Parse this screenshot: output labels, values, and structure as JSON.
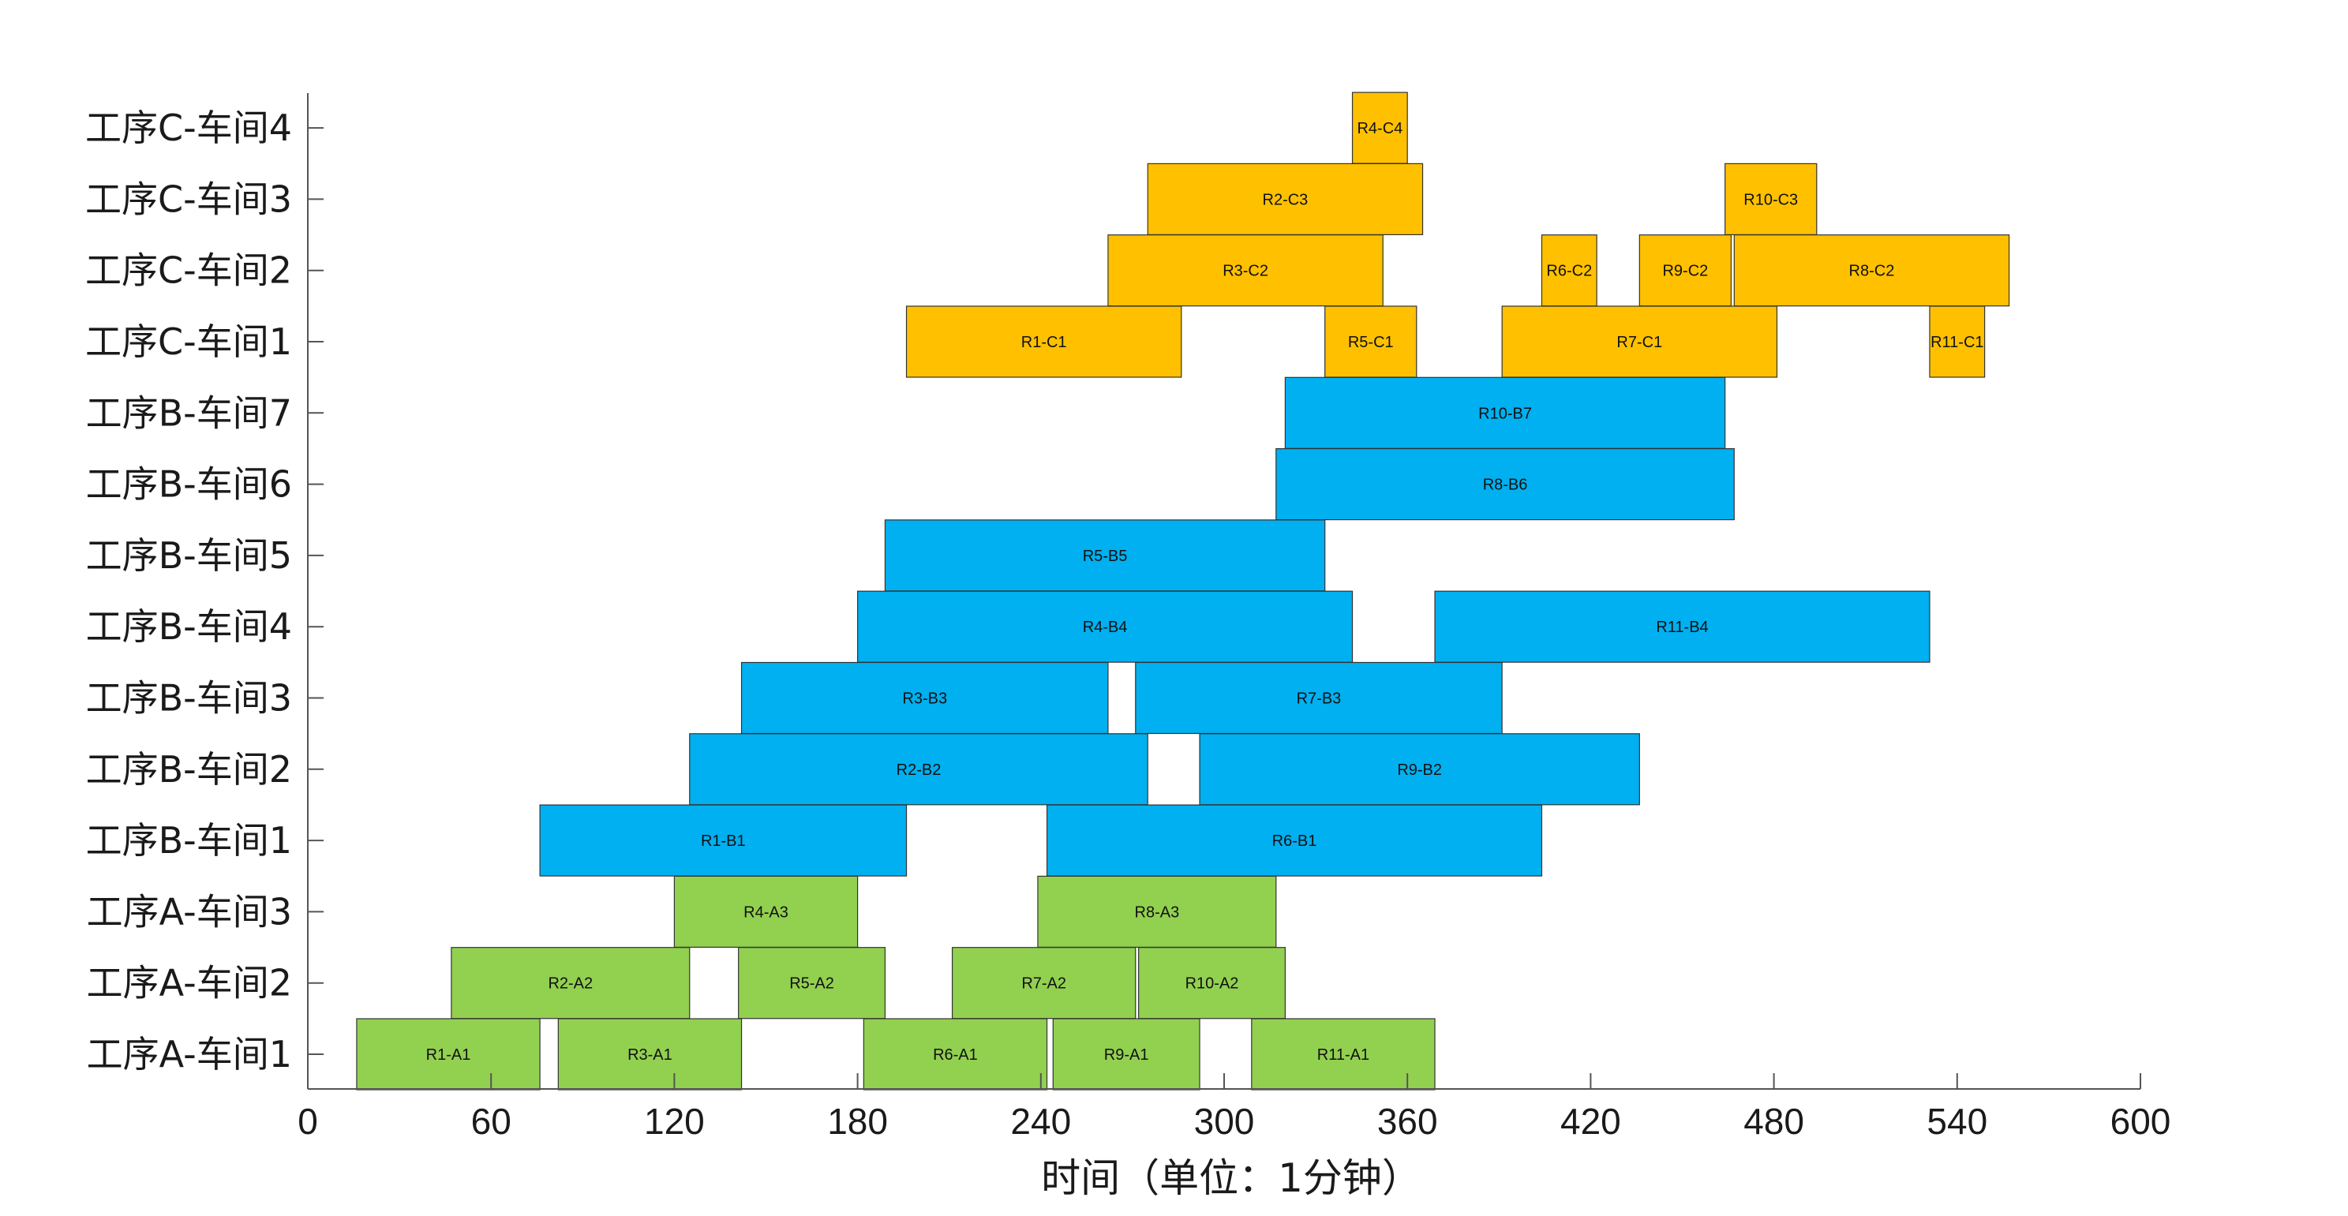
{
  "chart_data": {
    "type": "gantt",
    "title": "",
    "xlabel": "时间（单位：1分钟）",
    "ylabel": "",
    "xlim": [
      0,
      600
    ],
    "xticks": [
      0,
      60,
      120,
      180,
      240,
      300,
      360,
      420,
      480,
      540,
      600
    ],
    "categories": [
      "工序A-车间1",
      "工序A-车间2",
      "工序A-车间3",
      "工序B-车间1",
      "工序B-车间2",
      "工序B-车间3",
      "工序B-车间4",
      "工序B-车间5",
      "工序B-车间6",
      "工序B-车间7",
      "工序C-车间1",
      "工序C-车间2",
      "工序C-车间3",
      "工序C-车间4"
    ],
    "colors": {
      "A": "#92D050",
      "B": "#00B0F0",
      "C": "#FFC000",
      "edge": "#333333",
      "axis": "#555555"
    },
    "tasks": [
      {
        "label": "R1-A1",
        "row": 0,
        "start": 16,
        "end": 76,
        "group": "A"
      },
      {
        "label": "R3-A1",
        "row": 0,
        "start": 82,
        "end": 142,
        "group": "A"
      },
      {
        "label": "R6-A1",
        "row": 0,
        "start": 182,
        "end": 242,
        "group": "A"
      },
      {
        "label": "R9-A1",
        "row": 0,
        "start": 244,
        "end": 292,
        "group": "A"
      },
      {
        "label": "R11-A1",
        "row": 0,
        "start": 309,
        "end": 369,
        "group": "A"
      },
      {
        "label": "R2-A2",
        "row": 1,
        "start": 47,
        "end": 125,
        "group": "A"
      },
      {
        "label": "R5-A2",
        "row": 1,
        "start": 141,
        "end": 189,
        "group": "A"
      },
      {
        "label": "R7-A2",
        "row": 1,
        "start": 211,
        "end": 271,
        "group": "A"
      },
      {
        "label": "R10-A2",
        "row": 1,
        "start": 272,
        "end": 320,
        "group": "A"
      },
      {
        "label": "R4-A3",
        "row": 2,
        "start": 120,
        "end": 180,
        "group": "A"
      },
      {
        "label": "R8-A3",
        "row": 2,
        "start": 239,
        "end": 317,
        "group": "A"
      },
      {
        "label": "R1-B1",
        "row": 3,
        "start": 76,
        "end": 196,
        "group": "B"
      },
      {
        "label": "R6-B1",
        "row": 3,
        "start": 242,
        "end": 404,
        "group": "B"
      },
      {
        "label": "R2-B2",
        "row": 4,
        "start": 125,
        "end": 275,
        "group": "B"
      },
      {
        "label": "R9-B2",
        "row": 4,
        "start": 292,
        "end": 436,
        "group": "B"
      },
      {
        "label": "R3-B3",
        "row": 5,
        "start": 142,
        "end": 262,
        "group": "B"
      },
      {
        "label": "R7-B3",
        "row": 5,
        "start": 271,
        "end": 391,
        "group": "B"
      },
      {
        "label": "R4-B4",
        "row": 6,
        "start": 180,
        "end": 342,
        "group": "B"
      },
      {
        "label": "R11-B4",
        "row": 6,
        "start": 369,
        "end": 531,
        "group": "B"
      },
      {
        "label": "R5-B5",
        "row": 7,
        "start": 189,
        "end": 333,
        "group": "B"
      },
      {
        "label": "R8-B6",
        "row": 8,
        "start": 317,
        "end": 467,
        "group": "B"
      },
      {
        "label": "R10-B7",
        "row": 9,
        "start": 320,
        "end": 464,
        "group": "B"
      },
      {
        "label": "R1-C1",
        "row": 10,
        "start": 196,
        "end": 286,
        "group": "C"
      },
      {
        "label": "R5-C1",
        "row": 10,
        "start": 333,
        "end": 363,
        "group": "C"
      },
      {
        "label": "R7-C1",
        "row": 10,
        "start": 391,
        "end": 481,
        "group": "C"
      },
      {
        "label": "R11-C1",
        "row": 10,
        "start": 531,
        "end": 549,
        "group": "C"
      },
      {
        "label": "R3-C2",
        "row": 11,
        "start": 262,
        "end": 352,
        "group": "C"
      },
      {
        "label": "R6-C2",
        "row": 11,
        "start": 404,
        "end": 422,
        "group": "C"
      },
      {
        "label": "R9-C2",
        "row": 11,
        "start": 436,
        "end": 466,
        "group": "C"
      },
      {
        "label": "R8-C2",
        "row": 11,
        "start": 467,
        "end": 557,
        "group": "C"
      },
      {
        "label": "R2-C3",
        "row": 12,
        "start": 275,
        "end": 365,
        "group": "C"
      },
      {
        "label": "R10-C3",
        "row": 12,
        "start": 464,
        "end": 494,
        "group": "C"
      },
      {
        "label": "R4-C4",
        "row": 13,
        "start": 342,
        "end": 360,
        "group": "C"
      }
    ]
  }
}
